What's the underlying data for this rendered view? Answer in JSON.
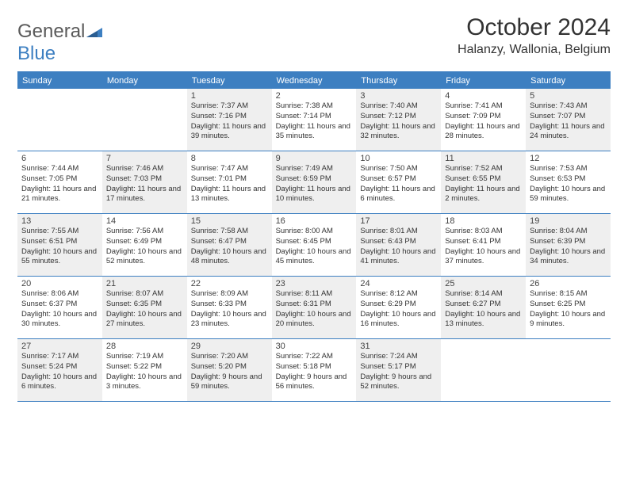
{
  "logo": {
    "word1": "General",
    "word2": "Blue"
  },
  "title": "October 2024",
  "location": "Halanzy, Wallonia, Belgium",
  "colors": {
    "brand": "#3d7fc1",
    "shade": "#efefef",
    "text": "#333333",
    "bg": "#ffffff"
  },
  "weekdays": [
    "Sunday",
    "Monday",
    "Tuesday",
    "Wednesday",
    "Thursday",
    "Friday",
    "Saturday"
  ],
  "weeks": [
    [
      {
        "n": "",
        "sunrise": "",
        "sunset": "",
        "daylight": "",
        "shade": false,
        "empty": true
      },
      {
        "n": "",
        "sunrise": "",
        "sunset": "",
        "daylight": "",
        "shade": false,
        "empty": true
      },
      {
        "n": "1",
        "sunrise": "Sunrise: 7:37 AM",
        "sunset": "Sunset: 7:16 PM",
        "daylight": "Daylight: 11 hours and 39 minutes.",
        "shade": true
      },
      {
        "n": "2",
        "sunrise": "Sunrise: 7:38 AM",
        "sunset": "Sunset: 7:14 PM",
        "daylight": "Daylight: 11 hours and 35 minutes.",
        "shade": false
      },
      {
        "n": "3",
        "sunrise": "Sunrise: 7:40 AM",
        "sunset": "Sunset: 7:12 PM",
        "daylight": "Daylight: 11 hours and 32 minutes.",
        "shade": true
      },
      {
        "n": "4",
        "sunrise": "Sunrise: 7:41 AM",
        "sunset": "Sunset: 7:09 PM",
        "daylight": "Daylight: 11 hours and 28 minutes.",
        "shade": false
      },
      {
        "n": "5",
        "sunrise": "Sunrise: 7:43 AM",
        "sunset": "Sunset: 7:07 PM",
        "daylight": "Daylight: 11 hours and 24 minutes.",
        "shade": true
      }
    ],
    [
      {
        "n": "6",
        "sunrise": "Sunrise: 7:44 AM",
        "sunset": "Sunset: 7:05 PM",
        "daylight": "Daylight: 11 hours and 21 minutes.",
        "shade": false
      },
      {
        "n": "7",
        "sunrise": "Sunrise: 7:46 AM",
        "sunset": "Sunset: 7:03 PM",
        "daylight": "Daylight: 11 hours and 17 minutes.",
        "shade": true
      },
      {
        "n": "8",
        "sunrise": "Sunrise: 7:47 AM",
        "sunset": "Sunset: 7:01 PM",
        "daylight": "Daylight: 11 hours and 13 minutes.",
        "shade": false
      },
      {
        "n": "9",
        "sunrise": "Sunrise: 7:49 AM",
        "sunset": "Sunset: 6:59 PM",
        "daylight": "Daylight: 11 hours and 10 minutes.",
        "shade": true
      },
      {
        "n": "10",
        "sunrise": "Sunrise: 7:50 AM",
        "sunset": "Sunset: 6:57 PM",
        "daylight": "Daylight: 11 hours and 6 minutes.",
        "shade": false
      },
      {
        "n": "11",
        "sunrise": "Sunrise: 7:52 AM",
        "sunset": "Sunset: 6:55 PM",
        "daylight": "Daylight: 11 hours and 2 minutes.",
        "shade": true
      },
      {
        "n": "12",
        "sunrise": "Sunrise: 7:53 AM",
        "sunset": "Sunset: 6:53 PM",
        "daylight": "Daylight: 10 hours and 59 minutes.",
        "shade": false
      }
    ],
    [
      {
        "n": "13",
        "sunrise": "Sunrise: 7:55 AM",
        "sunset": "Sunset: 6:51 PM",
        "daylight": "Daylight: 10 hours and 55 minutes.",
        "shade": true
      },
      {
        "n": "14",
        "sunrise": "Sunrise: 7:56 AM",
        "sunset": "Sunset: 6:49 PM",
        "daylight": "Daylight: 10 hours and 52 minutes.",
        "shade": false
      },
      {
        "n": "15",
        "sunrise": "Sunrise: 7:58 AM",
        "sunset": "Sunset: 6:47 PM",
        "daylight": "Daylight: 10 hours and 48 minutes.",
        "shade": true
      },
      {
        "n": "16",
        "sunrise": "Sunrise: 8:00 AM",
        "sunset": "Sunset: 6:45 PM",
        "daylight": "Daylight: 10 hours and 45 minutes.",
        "shade": false
      },
      {
        "n": "17",
        "sunrise": "Sunrise: 8:01 AM",
        "sunset": "Sunset: 6:43 PM",
        "daylight": "Daylight: 10 hours and 41 minutes.",
        "shade": true
      },
      {
        "n": "18",
        "sunrise": "Sunrise: 8:03 AM",
        "sunset": "Sunset: 6:41 PM",
        "daylight": "Daylight: 10 hours and 37 minutes.",
        "shade": false
      },
      {
        "n": "19",
        "sunrise": "Sunrise: 8:04 AM",
        "sunset": "Sunset: 6:39 PM",
        "daylight": "Daylight: 10 hours and 34 minutes.",
        "shade": true
      }
    ],
    [
      {
        "n": "20",
        "sunrise": "Sunrise: 8:06 AM",
        "sunset": "Sunset: 6:37 PM",
        "daylight": "Daylight: 10 hours and 30 minutes.",
        "shade": false
      },
      {
        "n": "21",
        "sunrise": "Sunrise: 8:07 AM",
        "sunset": "Sunset: 6:35 PM",
        "daylight": "Daylight: 10 hours and 27 minutes.",
        "shade": true
      },
      {
        "n": "22",
        "sunrise": "Sunrise: 8:09 AM",
        "sunset": "Sunset: 6:33 PM",
        "daylight": "Daylight: 10 hours and 23 minutes.",
        "shade": false
      },
      {
        "n": "23",
        "sunrise": "Sunrise: 8:11 AM",
        "sunset": "Sunset: 6:31 PM",
        "daylight": "Daylight: 10 hours and 20 minutes.",
        "shade": true
      },
      {
        "n": "24",
        "sunrise": "Sunrise: 8:12 AM",
        "sunset": "Sunset: 6:29 PM",
        "daylight": "Daylight: 10 hours and 16 minutes.",
        "shade": false
      },
      {
        "n": "25",
        "sunrise": "Sunrise: 8:14 AM",
        "sunset": "Sunset: 6:27 PM",
        "daylight": "Daylight: 10 hours and 13 minutes.",
        "shade": true
      },
      {
        "n": "26",
        "sunrise": "Sunrise: 8:15 AM",
        "sunset": "Sunset: 6:25 PM",
        "daylight": "Daylight: 10 hours and 9 minutes.",
        "shade": false
      }
    ],
    [
      {
        "n": "27",
        "sunrise": "Sunrise: 7:17 AM",
        "sunset": "Sunset: 5:24 PM",
        "daylight": "Daylight: 10 hours and 6 minutes.",
        "shade": true
      },
      {
        "n": "28",
        "sunrise": "Sunrise: 7:19 AM",
        "sunset": "Sunset: 5:22 PM",
        "daylight": "Daylight: 10 hours and 3 minutes.",
        "shade": false
      },
      {
        "n": "29",
        "sunrise": "Sunrise: 7:20 AM",
        "sunset": "Sunset: 5:20 PM",
        "daylight": "Daylight: 9 hours and 59 minutes.",
        "shade": true
      },
      {
        "n": "30",
        "sunrise": "Sunrise: 7:22 AM",
        "sunset": "Sunset: 5:18 PM",
        "daylight": "Daylight: 9 hours and 56 minutes.",
        "shade": false
      },
      {
        "n": "31",
        "sunrise": "Sunrise: 7:24 AM",
        "sunset": "Sunset: 5:17 PM",
        "daylight": "Daylight: 9 hours and 52 minutes.",
        "shade": true
      },
      {
        "n": "",
        "sunrise": "",
        "sunset": "",
        "daylight": "",
        "shade": false,
        "empty": true
      },
      {
        "n": "",
        "sunrise": "",
        "sunset": "",
        "daylight": "",
        "shade": false,
        "empty": true
      }
    ]
  ]
}
